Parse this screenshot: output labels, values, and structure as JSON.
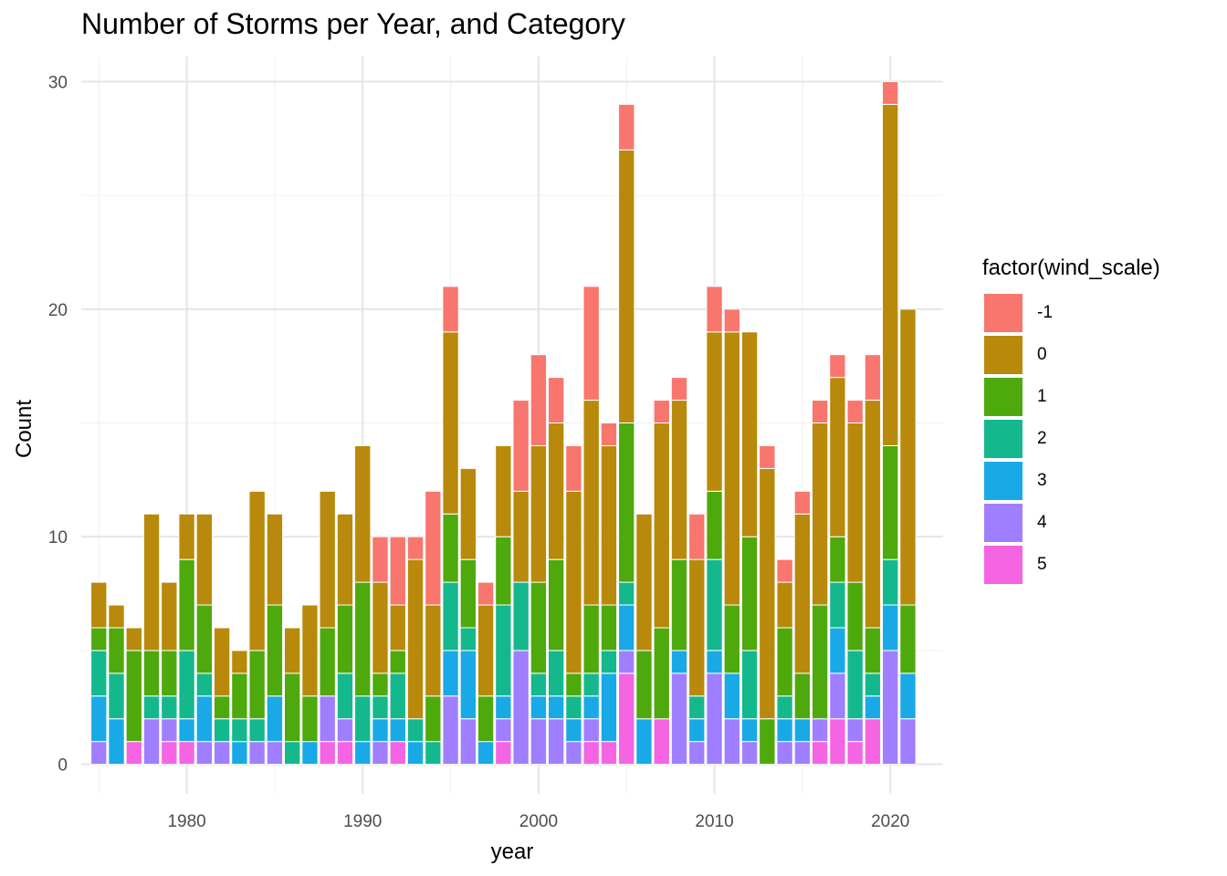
{
  "title": "Number of Storms per Year, and Category",
  "chart_data": {
    "type": "bar",
    "stacked": true,
    "title": "Number of Storms per Year, and Category",
    "xlabel": "year",
    "ylabel": "Count",
    "xlim": [
      1974,
      2023
    ],
    "ylim": [
      -1.3,
      31.1
    ],
    "x_ticks": [
      1980,
      1990,
      2000,
      2010,
      2020
    ],
    "y_ticks": [
      0,
      10,
      20,
      30
    ],
    "grid": true,
    "legend_title": "factor(wind_scale)",
    "legend_position": "right",
    "categories": [
      1975,
      1976,
      1977,
      1978,
      1979,
      1980,
      1981,
      1982,
      1983,
      1984,
      1985,
      1986,
      1987,
      1988,
      1989,
      1990,
      1991,
      1992,
      1993,
      1994,
      1995,
      1996,
      1997,
      1998,
      1999,
      2000,
      2001,
      2002,
      2003,
      2004,
      2005,
      2006,
      2007,
      2008,
      2009,
      2010,
      2011,
      2012,
      2013,
      2014,
      2015,
      2016,
      2017,
      2018,
      2019,
      2020,
      2021
    ],
    "series": [
      {
        "name": "5",
        "color": "#F564E3",
        "values": [
          0,
          0,
          1,
          0,
          1,
          1,
          0,
          0,
          0,
          0,
          0,
          0,
          0,
          1,
          1,
          0,
          0,
          1,
          0,
          0,
          0,
          0,
          0,
          1,
          0,
          0,
          0,
          0,
          1,
          1,
          4,
          0,
          2,
          0,
          0,
          0,
          0,
          0,
          0,
          0,
          0,
          1,
          2,
          1,
          2,
          0,
          0
        ]
      },
      {
        "name": "4",
        "color": "#9F7FFF",
        "values": [
          1,
          0,
          0,
          2,
          1,
          0,
          1,
          1,
          0,
          1,
          1,
          0,
          0,
          2,
          1,
          0,
          1,
          0,
          0,
          0,
          3,
          2,
          0,
          1,
          5,
          2,
          2,
          1,
          1,
          0,
          1,
          0,
          0,
          4,
          1,
          4,
          2,
          1,
          0,
          1,
          1,
          1,
          2,
          1,
          0,
          5,
          2
        ]
      },
      {
        "name": "3",
        "color": "#19A9E6",
        "values": [
          2,
          2,
          0,
          0,
          0,
          1,
          2,
          0,
          1,
          0,
          2,
          0,
          1,
          0,
          0,
          1,
          1,
          1,
          1,
          0,
          2,
          3,
          1,
          1,
          0,
          1,
          1,
          1,
          1,
          3,
          2,
          2,
          0,
          1,
          1,
          1,
          2,
          1,
          0,
          1,
          1,
          0,
          2,
          0,
          1,
          2,
          2
        ]
      },
      {
        "name": "2",
        "color": "#14B88C",
        "values": [
          2,
          2,
          0,
          1,
          1,
          3,
          1,
          1,
          1,
          1,
          0,
          1,
          0,
          0,
          2,
          2,
          1,
          2,
          1,
          1,
          3,
          1,
          0,
          4,
          3,
          1,
          2,
          1,
          1,
          1,
          1,
          0,
          0,
          0,
          1,
          4,
          0,
          3,
          0,
          1,
          0,
          0,
          2,
          3,
          1,
          2,
          0
        ]
      },
      {
        "name": "1",
        "color": "#4EA90D",
        "values": [
          1,
          2,
          4,
          2,
          2,
          4,
          3,
          1,
          2,
          3,
          4,
          3,
          2,
          3,
          3,
          5,
          1,
          1,
          0,
          2,
          3,
          3,
          2,
          3,
          0,
          4,
          4,
          1,
          3,
          2,
          7,
          3,
          4,
          4,
          0,
          3,
          3,
          5,
          2,
          3,
          2,
          5,
          2,
          3,
          2,
          5,
          3
        ]
      },
      {
        "name": "0",
        "color": "#B8890A",
        "values": [
          2,
          1,
          1,
          6,
          3,
          2,
          4,
          3,
          1,
          7,
          4,
          2,
          4,
          6,
          4,
          6,
          4,
          2,
          7,
          4,
          8,
          4,
          4,
          4,
          4,
          6,
          6,
          8,
          9,
          7,
          12,
          6,
          9,
          7,
          6,
          7,
          12,
          9,
          11,
          2,
          7,
          8,
          7,
          7,
          10,
          15,
          13
        ]
      },
      {
        "name": "-1",
        "color": "#F8766D",
        "values": [
          0,
          0,
          0,
          0,
          0,
          0,
          0,
          0,
          0,
          0,
          0,
          0,
          0,
          0,
          0,
          0,
          2,
          3,
          1,
          5,
          2,
          0,
          1,
          0,
          4,
          4,
          2,
          2,
          5,
          1,
          2,
          0,
          1,
          1,
          2,
          2,
          1,
          0,
          1,
          1,
          1,
          1,
          1,
          1,
          2,
          1,
          0
        ]
      }
    ]
  }
}
